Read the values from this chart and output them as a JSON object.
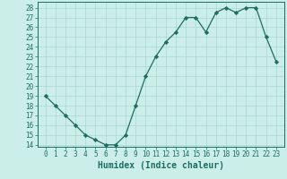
{
  "xlabel": "Humidex (Indice chaleur)",
  "x": [
    0,
    1,
    2,
    3,
    4,
    5,
    6,
    7,
    8,
    9,
    10,
    11,
    12,
    13,
    14,
    15,
    16,
    17,
    18,
    19,
    20,
    21,
    22,
    23
  ],
  "y": [
    19,
    18,
    17,
    16,
    15,
    14.5,
    14,
    14,
    15,
    18,
    21,
    23,
    24.5,
    25.5,
    27,
    27,
    25.5,
    27.5,
    28,
    27.5,
    28,
    28,
    25,
    22.5
  ],
  "line_color": "#1a6e62",
  "marker": "D",
  "marker_size": 2.2,
  "bg_color": "#cceee8",
  "grid_color": "#a8d8d0",
  "ylim_min": 13.8,
  "ylim_max": 28.6,
  "yticks": [
    14,
    15,
    16,
    17,
    18,
    19,
    20,
    21,
    22,
    23,
    24,
    25,
    26,
    27,
    28
  ],
  "xticks": [
    0,
    1,
    2,
    3,
    4,
    5,
    6,
    7,
    8,
    9,
    10,
    11,
    12,
    13,
    14,
    15,
    16,
    17,
    18,
    19,
    20,
    21,
    22,
    23
  ],
  "tick_fontsize": 5.5,
  "xlabel_fontsize": 7.0,
  "linewidth": 0.9
}
